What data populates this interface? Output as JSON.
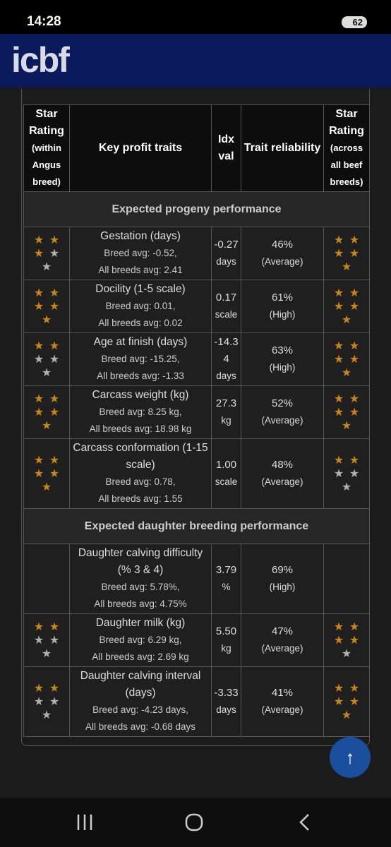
{
  "status_bar": {
    "time": "14:28",
    "battery": "62"
  },
  "header": {
    "logo": "icbf"
  },
  "table": {
    "columns": [
      {
        "title": "Star Rating",
        "note": "(within Angus breed)"
      },
      {
        "title": "Key profit traits"
      },
      {
        "title": "Idx val"
      },
      {
        "title": "Trait reliability"
      },
      {
        "title": "Star Rating",
        "note": "(across all beef breeds)"
      }
    ],
    "sections": [
      {
        "title": "Expected progeny performance",
        "rows": [
          {
            "stars_within": 3,
            "trait": "Gestation (days)",
            "breed_avg": "Breed avg: -0.52,",
            "all_breeds_avg": "All breeds avg: 2.41",
            "index_value": "-0.27",
            "index_unit": "days",
            "reliability": "46%",
            "reliability_label": "(Average)",
            "stars_across": 5
          },
          {
            "stars_within": 5,
            "trait": "Docility (1-5 scale)",
            "breed_avg": "Breed avg: 0.01,",
            "all_breeds_avg": "All breeds avg: 0.02",
            "index_value": "0.17",
            "index_unit": "scale",
            "reliability": "61%",
            "reliability_label": "(High)",
            "stars_across": 5
          },
          {
            "stars_within": 2,
            "trait": "Age at finish (days)",
            "breed_avg": "Breed avg: -15.25,",
            "all_breeds_avg": "All breeds avg: -1.33",
            "index_value": "-14.34",
            "index_unit": "days",
            "reliability": "63%",
            "reliability_label": "(High)",
            "stars_across": 5
          },
          {
            "stars_within": 5,
            "trait": "Carcass weight (kg)",
            "breed_avg": "Breed avg: 8.25 kg,",
            "all_breeds_avg": "All breeds avg: 18.98 kg",
            "index_value": "27.3",
            "index_unit": "kg",
            "reliability": "52%",
            "reliability_label": "(Average)",
            "stars_across": 5
          },
          {
            "stars_within": 5,
            "trait": "Carcass conformation (1-15 scale)",
            "breed_avg": "Breed avg: 0.78,",
            "all_breeds_avg": "All breeds avg: 1.55",
            "index_value": "1.00",
            "index_unit": "scale",
            "reliability": "48%",
            "reliability_label": "(Average)",
            "stars_across": 2
          }
        ]
      },
      {
        "title": "Expected daughter breeding performance",
        "rows": [
          {
            "stars_within": null,
            "trait": "Daughter calving difficulty (% 3 & 4)",
            "breed_avg": "Breed avg: 5.78%,",
            "all_breeds_avg": "All breeds avg: 4.75%",
            "index_value": "3.79",
            "index_unit": "%",
            "reliability": "69%",
            "reliability_label": "(High)",
            "stars_across": null
          },
          {
            "stars_within": 2,
            "trait": "Daughter milk (kg)",
            "breed_avg": "Breed avg: 6.29 kg,",
            "all_breeds_avg": "All breeds avg: 2.69 kg",
            "index_value": "5.50",
            "index_unit": "kg",
            "reliability": "47%",
            "reliability_label": "(Average)",
            "stars_across": 4
          },
          {
            "stars_within": 2,
            "trait": "Daughter calving interval (days)",
            "breed_avg": "Breed avg: -4.23 days,",
            "all_breeds_avg": "All breeds avg: -0.68 days",
            "index_value": "-3.33",
            "index_unit": "days",
            "reliability": "41%",
            "reliability_label": "(Average)",
            "stars_across": 5
          }
        ]
      }
    ]
  }
}
